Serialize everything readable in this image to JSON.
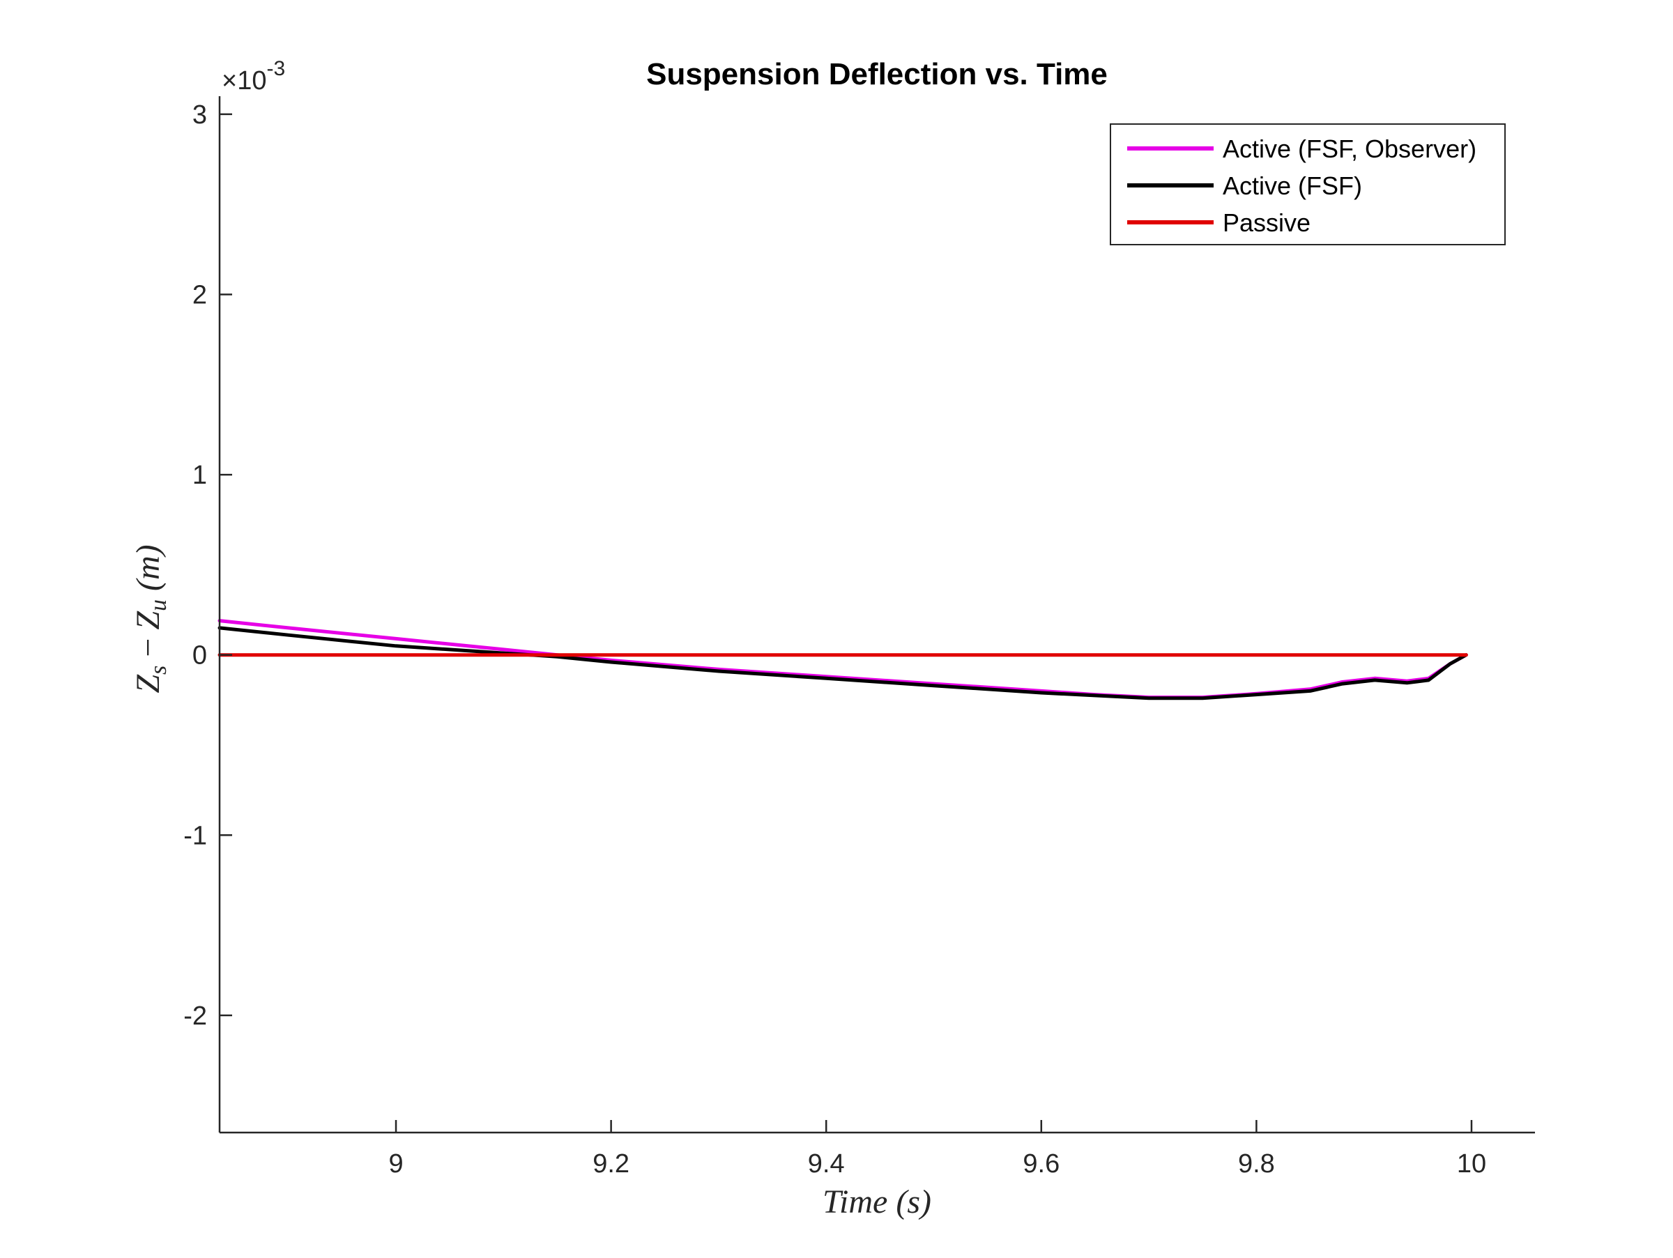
{
  "chart_data": {
    "type": "line",
    "title": "Suspension Deflection vs. Time",
    "xlabel": "Time (s)",
    "ylabel": "Zs − Zu (m)",
    "ylabel_parts": {
      "z": "Z",
      "s": "s",
      "minus": " − ",
      "u": "u",
      "unit": " (m)"
    },
    "y_exponent": {
      "prefix": "×10",
      "power": "-3"
    },
    "xlim": [
      8.836,
      10.059
    ],
    "ylim": [
      -2.65,
      3.1
    ],
    "x_ticks": [
      9,
      9.2,
      9.4,
      9.6,
      9.8,
      10
    ],
    "x_tick_labels": [
      "9",
      "9.2",
      "9.4",
      "9.6",
      "9.8",
      "10"
    ],
    "y_ticks": [
      -2,
      -1,
      0,
      1,
      2,
      3
    ],
    "y_tick_labels": [
      "-2",
      "-1",
      "0",
      "1",
      "2",
      "3"
    ],
    "grid": false,
    "legend_position": "top-right",
    "series": [
      {
        "name": "Active (FSF, Observer)",
        "color": "#E600E6",
        "x": [
          8.836,
          8.9,
          9.0,
          9.1,
          9.15,
          9.2,
          9.3,
          9.4,
          9.5,
          9.6,
          9.65,
          9.7,
          9.75,
          9.8,
          9.85,
          9.88,
          9.91,
          9.94,
          9.96,
          9.98,
          9.995
        ],
        "y": [
          0.19,
          0.15,
          0.09,
          0.03,
          0.0,
          -0.03,
          -0.08,
          -0.12,
          -0.16,
          -0.2,
          -0.22,
          -0.235,
          -0.235,
          -0.215,
          -0.19,
          -0.15,
          -0.13,
          -0.145,
          -0.13,
          -0.05,
          0.0
        ]
      },
      {
        "name": "Active (FSF)",
        "color": "#000000",
        "x": [
          8.836,
          8.9,
          9.0,
          9.1,
          9.15,
          9.2,
          9.3,
          9.4,
          9.5,
          9.6,
          9.65,
          9.7,
          9.75,
          9.8,
          9.85,
          9.88,
          9.91,
          9.94,
          9.96,
          9.98,
          9.995
        ],
        "y": [
          0.15,
          0.11,
          0.05,
          0.01,
          -0.01,
          -0.04,
          -0.09,
          -0.13,
          -0.17,
          -0.21,
          -0.225,
          -0.24,
          -0.24,
          -0.22,
          -0.2,
          -0.16,
          -0.14,
          -0.155,
          -0.14,
          -0.05,
          0.0
        ]
      },
      {
        "name": "Passive",
        "color": "#E00000",
        "x": [
          8.836,
          9.0,
          9.5,
          9.995
        ],
        "y": [
          0.0,
          0.0,
          0.0,
          0.0
        ]
      }
    ]
  }
}
